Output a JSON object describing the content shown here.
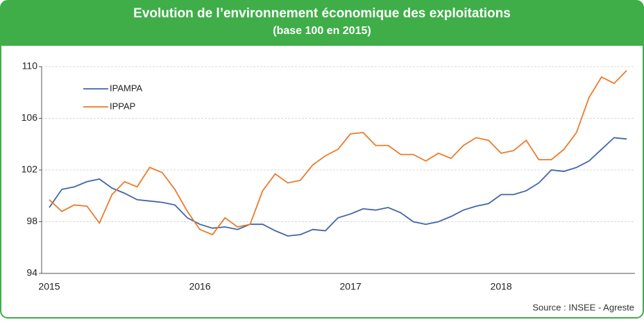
{
  "chart_data": {
    "type": "line",
    "title": "Evolution de l’environnement économique des exploitations",
    "subtitle": "(base 100 en 2015)",
    "source": "Source : INSEE - Agreste",
    "categories": [
      "2015",
      null,
      null,
      null,
      null,
      null,
      null,
      null,
      null,
      null,
      null,
      null,
      "2016",
      null,
      null,
      null,
      null,
      null,
      null,
      null,
      null,
      null,
      null,
      null,
      "2017",
      null,
      null,
      null,
      null,
      null,
      null,
      null,
      null,
      null,
      null,
      null,
      "2018",
      null,
      null,
      null,
      null,
      null,
      null,
      null,
      null,
      null,
      null
    ],
    "series": [
      {
        "name": "IPAMPA",
        "color": "#4065a8",
        "values": [
          99.1,
          100.5,
          100.7,
          101.1,
          101.3,
          100.6,
          100.2,
          99.7,
          99.6,
          99.5,
          99.3,
          98.3,
          97.8,
          97.5,
          97.6,
          97.4,
          97.8,
          97.8,
          97.3,
          96.9,
          97.0,
          97.4,
          97.3,
          98.3,
          98.6,
          99.0,
          98.9,
          99.1,
          98.7,
          98.0,
          97.8,
          98.0,
          98.4,
          98.9,
          99.2,
          99.4,
          100.1,
          100.1,
          100.4,
          101.0,
          102.0,
          101.9,
          102.2,
          102.7,
          103.6,
          104.5,
          104.4
        ]
      },
      {
        "name": "IPPAP",
        "color": "#ec7a2c",
        "values": [
          99.7,
          98.8,
          99.3,
          99.2,
          97.9,
          100.1,
          101.1,
          100.7,
          102.2,
          101.8,
          100.5,
          98.8,
          97.4,
          97.0,
          98.3,
          97.6,
          97.8,
          100.4,
          101.7,
          101.0,
          101.2,
          102.4,
          103.1,
          103.6,
          104.8,
          104.9,
          103.9,
          103.9,
          103.2,
          103.2,
          102.7,
          103.3,
          102.9,
          103.9,
          104.5,
          104.3,
          103.3,
          103.5,
          104.3,
          102.8,
          102.8,
          103.6,
          104.9,
          107.6,
          109.2,
          108.7,
          109.7
        ]
      }
    ],
    "ylim": [
      94,
      110
    ],
    "yticks": [
      94,
      98,
      102,
      106,
      110
    ],
    "grid": true,
    "legend": "top-left"
  }
}
